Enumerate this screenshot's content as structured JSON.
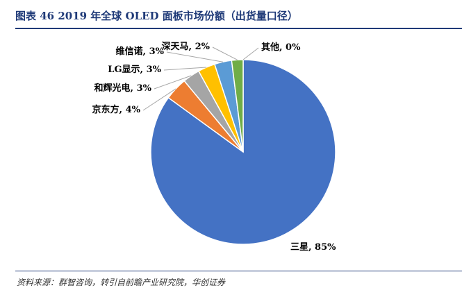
{
  "header": {
    "title": "图表 46 2019 年全球 OLED 面板市场份额（出货量口径）"
  },
  "chart_data": {
    "type": "pie",
    "categories": [
      "三星",
      "京东方",
      "和辉光电",
      "LG显示",
      "维信诺",
      "深天马",
      "其他"
    ],
    "values": [
      85,
      4,
      3,
      3,
      3,
      2,
      0
    ],
    "data_labels": [
      "三星, 85%",
      "京东方, 4%",
      "和辉光电, 3%",
      "LG显示, 3%",
      "维信诺, 3%",
      "深天马, 2%",
      "其他, 0%"
    ],
    "colors": [
      "#4472C4",
      "#ED7D31",
      "#A5A5A5",
      "#FFC000",
      "#5B9BD5",
      "#70AD47",
      "#264478"
    ],
    "start_angle_deg": 0,
    "direction": "clockwise",
    "legend": "none"
  },
  "footer": {
    "source": "资料来源：群智咨询，转引自前瞻产业研究院，华创证券"
  }
}
